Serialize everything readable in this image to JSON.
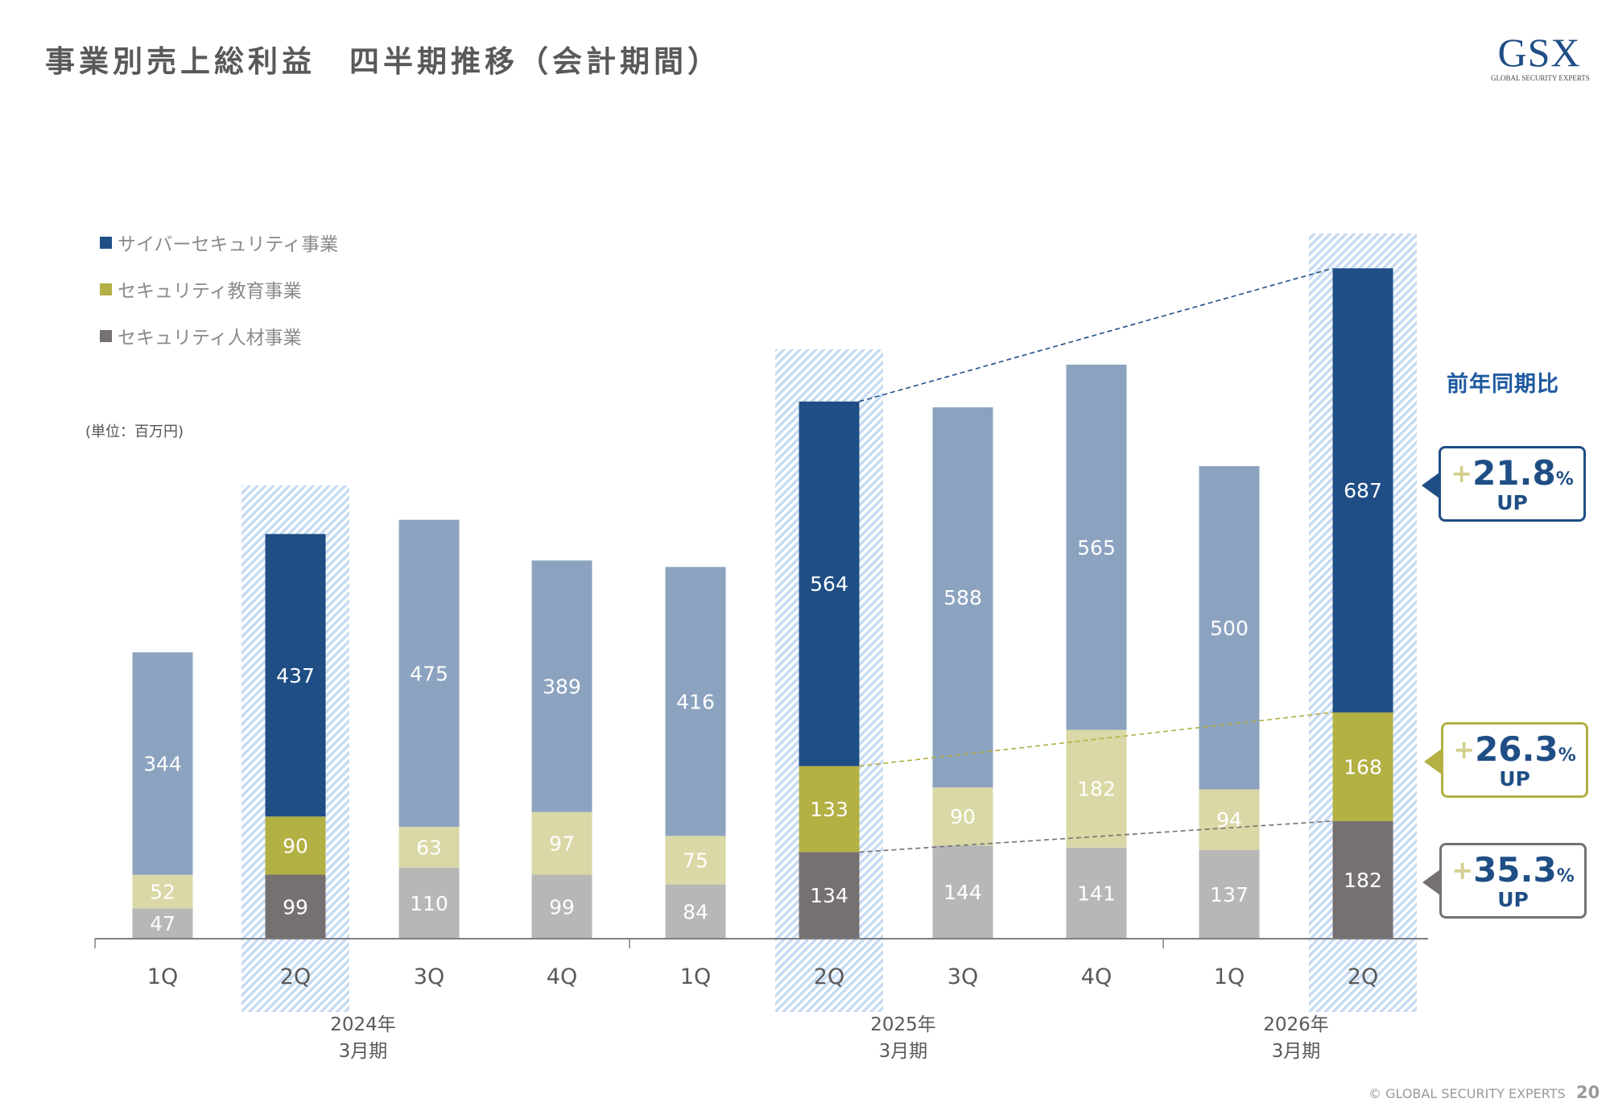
{
  "title": "事業別売上総利益　四半期推移（会計期間）",
  "logo": {
    "main": "GSX",
    "sub": "GLOBAL SECURITY EXPERTS"
  },
  "legend": [
    {
      "label": "サイバーセキュリティ事業",
      "color": "#1f4e85"
    },
    {
      "label": "セキュリティ教育事業",
      "color": "#b3b044"
    },
    {
      "label": "セキュリティ人材事業",
      "color": "#767171"
    }
  ],
  "unit_label": "(単位：百万円)",
  "yoy": {
    "title": "前年同期比",
    "callouts": [
      {
        "segment": "cyber",
        "plus": "+",
        "value": "21.8",
        "pct": "%",
        "up": "UP",
        "border": "#1f4e85"
      },
      {
        "segment": "education",
        "plus": "+",
        "value": "26.3",
        "pct": "%",
        "up": "UP",
        "border": "#b3b044"
      },
      {
        "segment": "talent",
        "plus": "+",
        "value": "35.3",
        "pct": "%",
        "up": "UP",
        "border": "#767171"
      }
    ]
  },
  "chart_data": {
    "type": "bar",
    "stacked": true,
    "title": "事業別売上総利益　四半期推移（会計期間）",
    "ylabel": "(単位：百万円)",
    "categories": [
      "1Q",
      "2Q",
      "3Q",
      "4Q",
      "1Q",
      "2Q",
      "3Q",
      "4Q",
      "1Q",
      "2Q"
    ],
    "period_groups": [
      {
        "label_line1": "2024年",
        "label_line2": "3月期"
      },
      {
        "label_line1": "2025年",
        "label_line2": "3月期"
      },
      {
        "label_line1": "2026年",
        "label_line2": "3月期"
      }
    ],
    "highlighted_indices": [
      1,
      5,
      9
    ],
    "series": [
      {
        "name": "セキュリティ人材事業",
        "values": [
          47,
          99,
          110,
          99,
          84,
          134,
          144,
          141,
          137,
          182
        ],
        "color": "#767171",
        "light_color": "#b8b7b8"
      },
      {
        "name": "セキュリティ教育事業",
        "values": [
          52,
          90,
          63,
          97,
          75,
          133,
          90,
          182,
          94,
          168
        ],
        "color": "#b3b044",
        "light_color": "#d9d8a6"
      },
      {
        "name": "サイバーセキュリティ事業",
        "values": [
          344,
          437,
          475,
          389,
          416,
          564,
          588,
          565,
          500,
          687
        ],
        "color": "#1f4e85",
        "light_color": "#8ca3c0"
      }
    ],
    "ylim": [
      0,
      1100
    ],
    "grid": false,
    "legend_position": "top-left"
  },
  "footer": {
    "copyright": "© GLOBAL SECURITY EXPERTS",
    "page": "20"
  }
}
